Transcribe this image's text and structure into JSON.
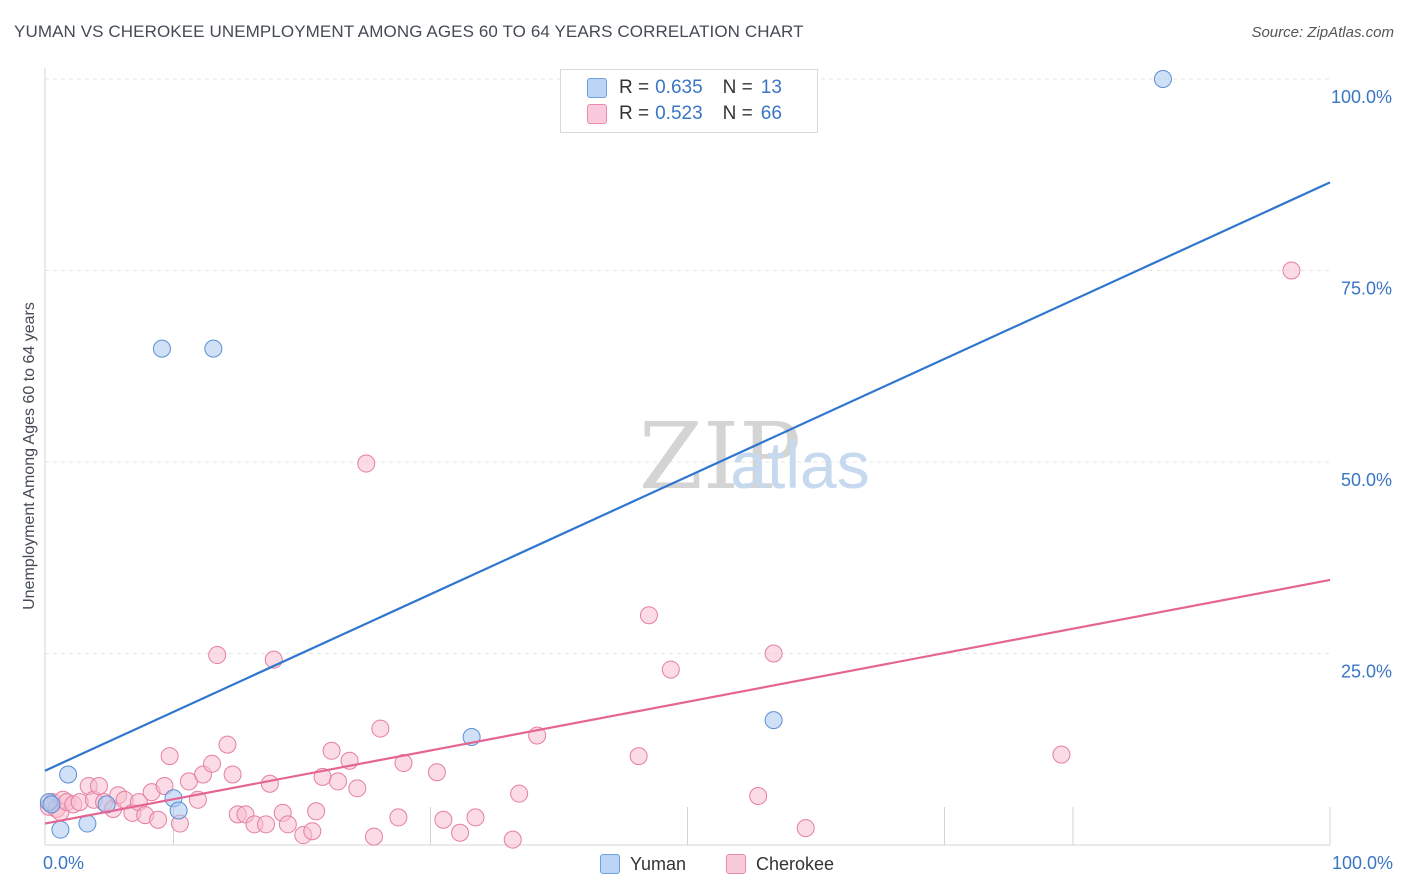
{
  "title": "YUMAN VS CHEROKEE UNEMPLOYMENT AMONG AGES 60 TO 64 YEARS CORRELATION CHART",
  "source": "Source: ZipAtlas.com",
  "watermark": {
    "zip": "ZIP",
    "atlas": "atlas"
  },
  "legend": {
    "r_label": "R =",
    "n_label": "N =",
    "yuman": {
      "r": "0.635",
      "n": "13"
    },
    "cherokee": {
      "r": "0.523",
      "n": "66"
    }
  },
  "chart_data": {
    "type": "scatter",
    "title": "YUMAN VS CHEROKEE UNEMPLOYMENT AMONG AGES 60 TO 64 YEARS CORRELATION CHART",
    "xlabel": "",
    "ylabel": "Unemployment Among Ages 60 to 64 years",
    "xlim": [
      0,
      100
    ],
    "ylim": [
      0,
      100
    ],
    "x_tick_labels": [
      "0.0%",
      "100.0%"
    ],
    "y_ticks": [
      25,
      50,
      75,
      100
    ],
    "y_tick_labels": [
      "25.0%",
      "50.0%",
      "75.0%",
      "100.0%"
    ],
    "grid": true,
    "legend_position": "top-center",
    "series": [
      {
        "name": "Yuman",
        "color": "#a9c8f0",
        "edge": "#5b8fd4",
        "line_color": "#2f76cf",
        "trend": [
          [
            0,
            9.7
          ],
          [
            100,
            86.5
          ]
        ],
        "points": [
          [
            0.3,
            5.6
          ],
          [
            0.5,
            5.3
          ],
          [
            1.2,
            2.0
          ],
          [
            1.8,
            9.2
          ],
          [
            3.3,
            2.8
          ],
          [
            4.8,
            5.3
          ],
          [
            9.1,
            64.8
          ],
          [
            10.0,
            6.1
          ],
          [
            10.4,
            4.5
          ],
          [
            13.1,
            64.8
          ],
          [
            33.2,
            14.1
          ],
          [
            56.7,
            16.3
          ],
          [
            87.0,
            100.0
          ]
        ]
      },
      {
        "name": "Cherokee",
        "color": "#f7bdd0",
        "edge": "#e57fa1",
        "line_color": "#e46594",
        "trend": [
          [
            0,
            2.8
          ],
          [
            100,
            34.6
          ]
        ],
        "points": [
          [
            0.3,
            5.0
          ],
          [
            0.6,
            5.6
          ],
          [
            0.9,
            4.7
          ],
          [
            1.2,
            4.3
          ],
          [
            1.4,
            5.9
          ],
          [
            1.7,
            5.6
          ],
          [
            2.2,
            5.3
          ],
          [
            2.7,
            5.6
          ],
          [
            3.4,
            7.7
          ],
          [
            3.8,
            5.9
          ],
          [
            4.2,
            7.7
          ],
          [
            4.6,
            5.6
          ],
          [
            5.3,
            4.7
          ],
          [
            5.7,
            6.5
          ],
          [
            6.2,
            5.9
          ],
          [
            6.8,
            4.2
          ],
          [
            7.3,
            5.6
          ],
          [
            7.8,
            3.9
          ],
          [
            8.3,
            6.9
          ],
          [
            8.8,
            3.3
          ],
          [
            9.3,
            7.7
          ],
          [
            9.7,
            11.6
          ],
          [
            10.5,
            2.8
          ],
          [
            11.2,
            8.3
          ],
          [
            11.9,
            5.9
          ],
          [
            12.3,
            9.2
          ],
          [
            13.0,
            10.6
          ],
          [
            13.4,
            24.8
          ],
          [
            14.2,
            13.1
          ],
          [
            14.6,
            9.2
          ],
          [
            15.0,
            4.0
          ],
          [
            15.6,
            4.0
          ],
          [
            16.3,
            2.7
          ],
          [
            17.2,
            2.7
          ],
          [
            17.5,
            8.0
          ],
          [
            17.8,
            24.2
          ],
          [
            18.5,
            4.2
          ],
          [
            18.9,
            2.7
          ],
          [
            20.1,
            1.3
          ],
          [
            20.8,
            1.8
          ],
          [
            21.1,
            4.4
          ],
          [
            21.6,
            8.9
          ],
          [
            22.3,
            12.3
          ],
          [
            22.8,
            8.3
          ],
          [
            23.7,
            11.0
          ],
          [
            24.3,
            7.4
          ],
          [
            25.0,
            49.8
          ],
          [
            25.6,
            1.1
          ],
          [
            26.1,
            15.2
          ],
          [
            27.5,
            3.6
          ],
          [
            27.9,
            10.7
          ],
          [
            30.5,
            9.5
          ],
          [
            31.0,
            3.3
          ],
          [
            32.3,
            1.6
          ],
          [
            33.5,
            3.6
          ],
          [
            36.4,
            0.7
          ],
          [
            36.9,
            6.7
          ],
          [
            38.3,
            14.3
          ],
          [
            46.2,
            11.6
          ],
          [
            47.0,
            30.0
          ],
          [
            48.7,
            22.9
          ],
          [
            55.5,
            6.4
          ],
          [
            56.7,
            25.0
          ],
          [
            59.2,
            2.2
          ],
          [
            79.1,
            11.8
          ],
          [
            97.0,
            75.0
          ]
        ]
      }
    ]
  }
}
